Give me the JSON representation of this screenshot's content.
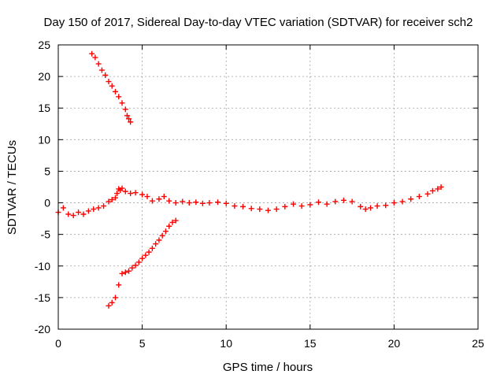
{
  "chart_data": {
    "type": "scatter",
    "title": "Day 150 of 2017, Sidereal Day-to-day VTEC variation (SDTVAR) for receiver sch2",
    "xlabel": "GPS time / hours",
    "ylabel": "SDTVAR / TECUs",
    "xlim": [
      0,
      25
    ],
    "ylim": [
      -20,
      25
    ],
    "xticks": [
      0,
      5,
      10,
      15,
      20,
      25
    ],
    "yticks": [
      -20,
      -15,
      -10,
      -5,
      0,
      5,
      10,
      15,
      20,
      25
    ],
    "grid": true,
    "marker": "plus",
    "color": "#ff0000",
    "series": [
      {
        "name": "arc-high-descending",
        "x": [
          2.0,
          2.2,
          2.4,
          2.6,
          2.8,
          3.0,
          3.2,
          3.4,
          3.6,
          3.8,
          4.0,
          4.1,
          4.2,
          4.3
        ],
        "y": [
          23.6,
          23.0,
          22.0,
          21.0,
          20.2,
          19.2,
          18.5,
          17.6,
          16.8,
          15.8,
          14.8,
          13.8,
          13.3,
          12.8
        ]
      },
      {
        "name": "arc-low-ascending",
        "x": [
          3.0,
          3.2,
          3.4,
          3.6,
          3.8,
          4.0,
          4.2,
          4.4,
          4.6,
          4.8,
          5.0,
          5.2,
          5.4,
          5.6,
          5.8,
          6.0,
          6.2,
          6.4,
          6.6,
          6.8,
          7.0
        ],
        "y": [
          -16.3,
          -15.8,
          -15.0,
          -13.0,
          -11.2,
          -11.0,
          -10.8,
          -10.3,
          -9.9,
          -9.4,
          -8.8,
          -8.3,
          -7.8,
          -7.2,
          -6.5,
          -5.9,
          -5.2,
          -4.5,
          -3.7,
          -3.1,
          -2.8
        ]
      },
      {
        "name": "main-track",
        "x": [
          0.0,
          0.3,
          0.6,
          0.9,
          1.2,
          1.5,
          1.8,
          2.1,
          2.4,
          2.7,
          3.0,
          3.2,
          3.4,
          3.5,
          3.6,
          3.7,
          3.8,
          4.0,
          4.3,
          4.6,
          5.0,
          5.3,
          5.6,
          6.0,
          6.3,
          6.6,
          7.0,
          7.4,
          7.8,
          8.2,
          8.6,
          9.0,
          9.5,
          10.0,
          10.5,
          11.0,
          11.5,
          12.0,
          12.5,
          13.0,
          13.5,
          14.0,
          14.5,
          15.0,
          15.5,
          16.0,
          16.5,
          17.0,
          17.5,
          18.0,
          18.3,
          18.6,
          19.0,
          19.5,
          20.0,
          20.5,
          21.0,
          21.5,
          22.0,
          22.3,
          22.6,
          22.8
        ],
        "y": [
          -1.5,
          -0.8,
          -1.8,
          -2.0,
          -1.5,
          -1.8,
          -1.3,
          -1.0,
          -0.8,
          -0.5,
          0.2,
          0.5,
          0.8,
          1.5,
          2.2,
          2.0,
          2.3,
          1.8,
          1.5,
          1.6,
          1.3,
          1.0,
          0.3,
          0.6,
          1.0,
          0.3,
          0.0,
          0.2,
          0.0,
          0.1,
          -0.1,
          0.0,
          0.1,
          -0.1,
          -0.5,
          -0.6,
          -0.9,
          -1.0,
          -1.2,
          -1.0,
          -0.6,
          -0.2,
          -0.5,
          -0.3,
          0.1,
          -0.2,
          0.2,
          0.4,
          0.2,
          -0.6,
          -1.0,
          -0.8,
          -0.5,
          -0.4,
          0.0,
          0.2,
          0.6,
          1.0,
          1.4,
          1.9,
          2.2,
          2.5
        ]
      }
    ]
  }
}
